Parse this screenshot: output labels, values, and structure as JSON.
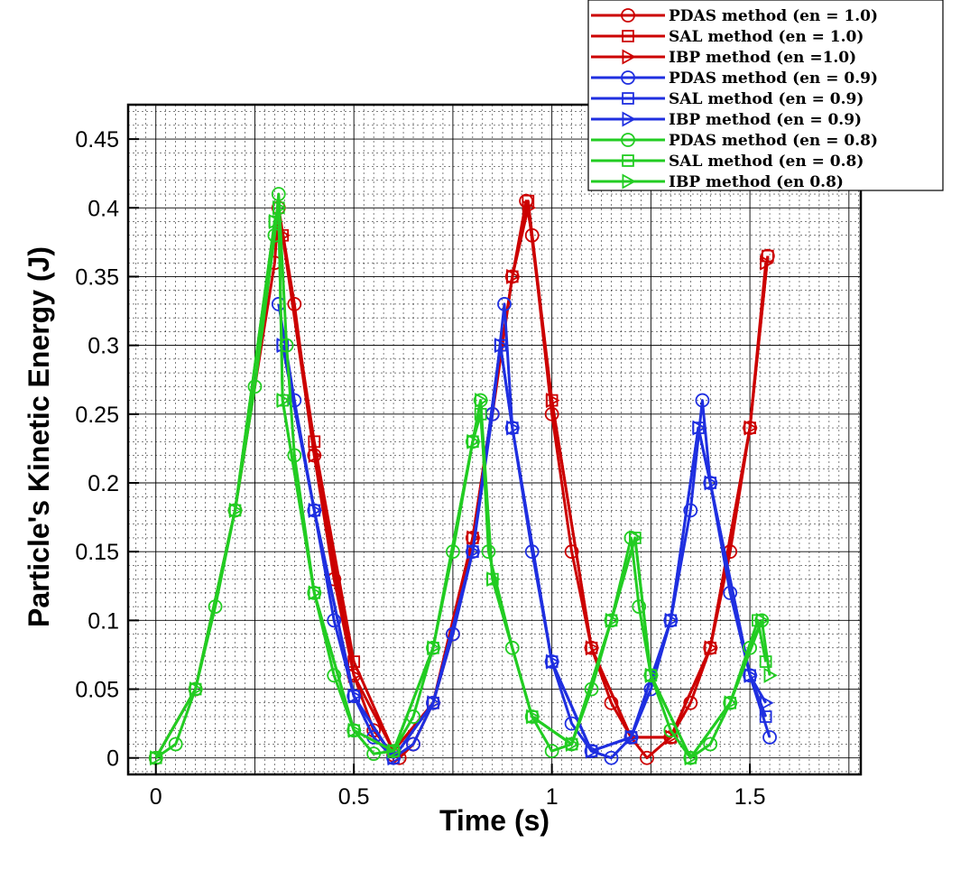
{
  "chart_data": {
    "type": "line",
    "title": "",
    "xlabel": "Time (s)",
    "ylabel": "Particle's Kinetic Energy (J)",
    "xlim": [
      -0.07,
      1.78
    ],
    "ylim": [
      -0.012,
      0.475
    ],
    "x_ticks": [
      0,
      0.5,
      1,
      1.5
    ],
    "x_tick_labels": [
      "0",
      "0.5",
      "1",
      "1.5"
    ],
    "y_ticks": [
      0,
      0.05,
      0.1,
      0.15,
      0.2,
      0.25,
      0.3,
      0.35,
      0.4,
      0.45
    ],
    "y_tick_labels": [
      "0",
      "0.05",
      "0.1",
      "0.15",
      "0.2",
      "0.25",
      "0.3",
      "0.35",
      "0.4",
      "0.45"
    ],
    "grid": true,
    "legend_position": "top-right, above plot",
    "series": [
      {
        "name": "PDAS method (en = 1.0)",
        "color": "#cc0000",
        "marker": "circle",
        "points": [
          [
            0,
            0
          ],
          [
            0.1,
            0.05
          ],
          [
            0.2,
            0.18
          ],
          [
            0.3,
            0.36
          ],
          [
            0.31,
            0.4
          ],
          [
            0.35,
            0.33
          ],
          [
            0.4,
            0.22
          ],
          [
            0.45,
            0.13
          ],
          [
            0.5,
            0.06
          ],
          [
            0.55,
            0.02
          ],
          [
            0.6,
            0.002
          ],
          [
            0.615,
            0
          ],
          [
            0.65,
            0.01
          ],
          [
            0.7,
            0.04
          ],
          [
            0.75,
            0.09
          ],
          [
            0.8,
            0.16
          ],
          [
            0.85,
            0.25
          ],
          [
            0.9,
            0.35
          ],
          [
            0.935,
            0.405
          ],
          [
            0.95,
            0.38
          ],
          [
            1,
            0.25
          ],
          [
            1.05,
            0.15
          ],
          [
            1.1,
            0.08
          ],
          [
            1.15,
            0.04
          ],
          [
            1.2,
            0.015
          ],
          [
            1.24,
            0
          ],
          [
            1.3,
            0.015
          ],
          [
            1.35,
            0.04
          ],
          [
            1.4,
            0.08
          ],
          [
            1.45,
            0.15
          ],
          [
            1.5,
            0.24
          ],
          [
            1.545,
            0.365
          ]
        ]
      },
      {
        "name": "SAL method (en = 1.0)",
        "color": "#cc0000",
        "marker": "square",
        "points": [
          [
            0.32,
            0.38
          ],
          [
            0.4,
            0.23
          ],
          [
            0.5,
            0.07
          ],
          [
            0.6,
            0.005
          ],
          [
            0.7,
            0.04
          ],
          [
            0.8,
            0.16
          ],
          [
            0.9,
            0.35
          ],
          [
            0.94,
            0.405
          ],
          [
            1,
            0.26
          ],
          [
            1.1,
            0.08
          ],
          [
            1.2,
            0.015
          ],
          [
            1.3,
            0.015
          ],
          [
            1.4,
            0.08
          ],
          [
            1.5,
            0.24
          ],
          [
            1.545,
            0.365
          ]
        ]
      },
      {
        "name": "IBP method (en =1.0)",
        "color": "#cc0000",
        "marker": "triangle",
        "points": [
          [
            0.32,
            0.38
          ],
          [
            0.4,
            0.22
          ],
          [
            0.5,
            0.06
          ],
          [
            0.6,
            0.005
          ],
          [
            0.7,
            0.04
          ],
          [
            0.8,
            0.16
          ],
          [
            0.9,
            0.35
          ],
          [
            0.94,
            0.4
          ],
          [
            1,
            0.26
          ],
          [
            1.1,
            0.08
          ],
          [
            1.2,
            0.015
          ],
          [
            1.3,
            0.015
          ],
          [
            1.4,
            0.08
          ],
          [
            1.5,
            0.24
          ],
          [
            1.54,
            0.36
          ]
        ]
      },
      {
        "name": "PDAS method (en = 0.9)",
        "color": "#1f2fe0",
        "marker": "circle",
        "points": [
          [
            0.31,
            0.33
          ],
          [
            0.35,
            0.26
          ],
          [
            0.4,
            0.18
          ],
          [
            0.45,
            0.1
          ],
          [
            0.5,
            0.045
          ],
          [
            0.55,
            0.015
          ],
          [
            0.6,
            0
          ],
          [
            0.65,
            0.01
          ],
          [
            0.7,
            0.04
          ],
          [
            0.75,
            0.09
          ],
          [
            0.8,
            0.15
          ],
          [
            0.85,
            0.25
          ],
          [
            0.88,
            0.33
          ],
          [
            0.9,
            0.24
          ],
          [
            0.95,
            0.15
          ],
          [
            1,
            0.07
          ],
          [
            1.05,
            0.025
          ],
          [
            1.1,
            0.005
          ],
          [
            1.15,
            0
          ],
          [
            1.2,
            0.015
          ],
          [
            1.25,
            0.05
          ],
          [
            1.3,
            0.1
          ],
          [
            1.35,
            0.18
          ],
          [
            1.38,
            0.26
          ],
          [
            1.4,
            0.2
          ],
          [
            1.45,
            0.12
          ],
          [
            1.5,
            0.06
          ],
          [
            1.55,
            0.015
          ]
        ]
      },
      {
        "name": "SAL method (en = 0.9)",
        "color": "#1f2fe0",
        "marker": "square",
        "points": [
          [
            0.32,
            0.3
          ],
          [
            0.4,
            0.18
          ],
          [
            0.5,
            0.045
          ],
          [
            0.6,
            0
          ],
          [
            0.7,
            0.04
          ],
          [
            0.8,
            0.15
          ],
          [
            0.87,
            0.3
          ],
          [
            0.9,
            0.24
          ],
          [
            1,
            0.07
          ],
          [
            1.1,
            0.005
          ],
          [
            1.2,
            0.015
          ],
          [
            1.3,
            0.1
          ],
          [
            1.37,
            0.24
          ],
          [
            1.4,
            0.2
          ],
          [
            1.5,
            0.06
          ],
          [
            1.54,
            0.03
          ]
        ]
      },
      {
        "name": "IBP method (en = 0.9)",
        "color": "#1f2fe0",
        "marker": "triangle",
        "points": [
          [
            0.32,
            0.3
          ],
          [
            0.4,
            0.18
          ],
          [
            0.5,
            0.045
          ],
          [
            0.6,
            0
          ],
          [
            0.7,
            0.04
          ],
          [
            0.8,
            0.15
          ],
          [
            0.87,
            0.3
          ],
          [
            0.9,
            0.24
          ],
          [
            1,
            0.07
          ],
          [
            1.1,
            0.005
          ],
          [
            1.2,
            0.015
          ],
          [
            1.3,
            0.1
          ],
          [
            1.37,
            0.24
          ],
          [
            1.4,
            0.2
          ],
          [
            1.5,
            0.06
          ],
          [
            1.54,
            0.04
          ]
        ]
      },
      {
        "name": "PDAS method (en = 0.8)",
        "color": "#22cc22",
        "marker": "circle",
        "points": [
          [
            0,
            0
          ],
          [
            0.05,
            0.01
          ],
          [
            0.1,
            0.05
          ],
          [
            0.15,
            0.11
          ],
          [
            0.2,
            0.18
          ],
          [
            0.25,
            0.27
          ],
          [
            0.3,
            0.38
          ],
          [
            0.31,
            0.41
          ],
          [
            0.33,
            0.3
          ],
          [
            0.35,
            0.22
          ],
          [
            0.4,
            0.12
          ],
          [
            0.45,
            0.06
          ],
          [
            0.5,
            0.02
          ],
          [
            0.55,
            0.003
          ],
          [
            0.6,
            0.005
          ],
          [
            0.65,
            0.03
          ],
          [
            0.7,
            0.08
          ],
          [
            0.75,
            0.15
          ],
          [
            0.8,
            0.23
          ],
          [
            0.82,
            0.26
          ],
          [
            0.84,
            0.15
          ],
          [
            0.9,
            0.08
          ],
          [
            0.95,
            0.03
          ],
          [
            1,
            0.005
          ],
          [
            1.05,
            0.01
          ],
          [
            1.1,
            0.05
          ],
          [
            1.15,
            0.1
          ],
          [
            1.2,
            0.16
          ],
          [
            1.22,
            0.11
          ],
          [
            1.25,
            0.06
          ],
          [
            1.3,
            0.02
          ],
          [
            1.35,
            0
          ],
          [
            1.4,
            0.01
          ],
          [
            1.45,
            0.04
          ],
          [
            1.5,
            0.08
          ],
          [
            1.53,
            0.1
          ]
        ]
      },
      {
        "name": "SAL method (en = 0.8)",
        "color": "#22cc22",
        "marker": "square",
        "points": [
          [
            0,
            0
          ],
          [
            0.1,
            0.05
          ],
          [
            0.2,
            0.18
          ],
          [
            0.3,
            0.39
          ],
          [
            0.31,
            0.4
          ],
          [
            0.32,
            0.26
          ],
          [
            0.4,
            0.12
          ],
          [
            0.5,
            0.02
          ],
          [
            0.6,
            0.005
          ],
          [
            0.7,
            0.08
          ],
          [
            0.8,
            0.23
          ],
          [
            0.82,
            0.25
          ],
          [
            0.85,
            0.13
          ],
          [
            0.95,
            0.03
          ],
          [
            1.05,
            0.01
          ],
          [
            1.15,
            0.1
          ],
          [
            1.21,
            0.16
          ],
          [
            1.25,
            0.06
          ],
          [
            1.35,
            0
          ],
          [
            1.45,
            0.04
          ],
          [
            1.52,
            0.1
          ],
          [
            1.54,
            0.07
          ]
        ]
      },
      {
        "name": "IBP method (en 0.8)",
        "color": "#22cc22",
        "marker": "triangle",
        "points": [
          [
            0,
            0
          ],
          [
            0.1,
            0.05
          ],
          [
            0.2,
            0.18
          ],
          [
            0.3,
            0.39
          ],
          [
            0.31,
            0.4
          ],
          [
            0.32,
            0.26
          ],
          [
            0.4,
            0.12
          ],
          [
            0.5,
            0.02
          ],
          [
            0.6,
            0.005
          ],
          [
            0.7,
            0.08
          ],
          [
            0.8,
            0.23
          ],
          [
            0.82,
            0.26
          ],
          [
            0.85,
            0.13
          ],
          [
            0.95,
            0.03
          ],
          [
            1.05,
            0.01
          ],
          [
            1.15,
            0.1
          ],
          [
            1.21,
            0.16
          ],
          [
            1.25,
            0.06
          ],
          [
            1.35,
            0
          ],
          [
            1.45,
            0.04
          ],
          [
            1.53,
            0.1
          ],
          [
            1.55,
            0.06
          ]
        ]
      }
    ]
  }
}
